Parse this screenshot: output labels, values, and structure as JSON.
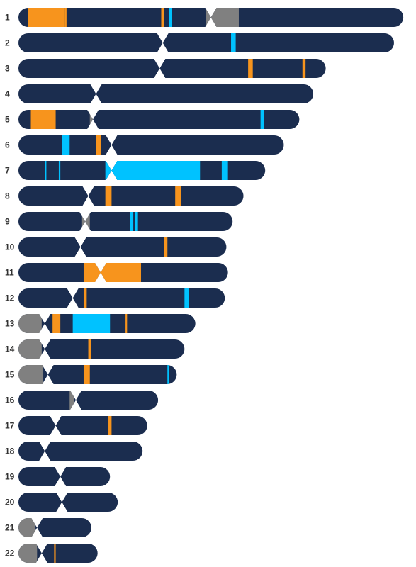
{
  "colors": {
    "chromosome": "#1b2d4f",
    "heterochromatin": "#808080",
    "gain": "#f7941d",
    "loss": "#00c2ff",
    "label": "#333333"
  },
  "chromosomes": [
    {
      "label": "1",
      "length": 248,
      "centromere": 124
    },
    {
      "label": "2",
      "length": 242,
      "centromere": 93
    },
    {
      "label": "3",
      "length": 198,
      "centromere": 91
    },
    {
      "label": "4",
      "length": 190,
      "centromere": 50
    },
    {
      "label": "5",
      "length": 181,
      "centromere": 48
    },
    {
      "label": "6",
      "length": 171,
      "centromere": 60
    },
    {
      "label": "7",
      "length": 159,
      "centromere": 60
    },
    {
      "label": "8",
      "length": 145,
      "centromere": 45
    },
    {
      "label": "9",
      "length": 138,
      "centromere": 43
    },
    {
      "label": "10",
      "length": 134,
      "centromere": 40
    },
    {
      "label": "11",
      "length": 135,
      "centromere": 53
    },
    {
      "label": "12",
      "length": 133,
      "centromere": 35
    },
    {
      "label": "13",
      "length": 114,
      "centromere": 17
    },
    {
      "label": "14",
      "length": 107,
      "centromere": 17
    },
    {
      "label": "15",
      "length": 102,
      "centromere": 19
    },
    {
      "label": "16",
      "length": 90,
      "centromere": 37
    },
    {
      "label": "17",
      "length": 83,
      "centromere": 24
    },
    {
      "label": "18",
      "length": 80,
      "centromere": 17
    },
    {
      "label": "19",
      "length": 59,
      "centromere": 27
    },
    {
      "label": "20",
      "length": 64,
      "centromere": 28
    },
    {
      "label": "21",
      "length": 47,
      "centromere": 12
    },
    {
      "label": "22",
      "length": 51,
      "centromere": 15
    }
  ],
  "heterochromatin": [
    {
      "chr": "1",
      "start": 121,
      "end": 142
    },
    {
      "chr": "5",
      "start": 46,
      "end": 48
    },
    {
      "chr": "9",
      "start": 41,
      "end": 46
    },
    {
      "chr": "13",
      "start": 0,
      "end": 15
    },
    {
      "chr": "14",
      "start": 0,
      "end": 15
    },
    {
      "chr": "15",
      "start": 0,
      "end": 16
    },
    {
      "chr": "16",
      "start": 33,
      "end": 36
    },
    {
      "chr": "21",
      "start": 0,
      "end": 11
    },
    {
      "chr": "22",
      "start": 0,
      "end": 12
    }
  ],
  "gains": [
    {
      "chr": "1",
      "start": 6,
      "end": 30
    },
    {
      "chr": "1",
      "start": 30,
      "end": 31
    },
    {
      "chr": "1",
      "start": 92,
      "end": 94
    },
    {
      "chr": "3",
      "start": 148,
      "end": 151
    },
    {
      "chr": "3",
      "start": 183,
      "end": 185
    },
    {
      "chr": "5",
      "start": 8,
      "end": 24
    },
    {
      "chr": "6",
      "start": 50,
      "end": 53
    },
    {
      "chr": "8",
      "start": 56,
      "end": 60
    },
    {
      "chr": "8",
      "start": 101,
      "end": 105
    },
    {
      "chr": "10",
      "start": 94,
      "end": 96
    },
    {
      "chr": "11",
      "start": 42,
      "end": 79
    },
    {
      "chr": "12",
      "start": 42,
      "end": 44
    },
    {
      "chr": "13",
      "start": 22,
      "end": 27
    },
    {
      "chr": "13",
      "start": 69,
      "end": 70
    },
    {
      "chr": "14",
      "start": 45,
      "end": 47
    },
    {
      "chr": "15",
      "start": 42,
      "end": 46
    },
    {
      "chr": "17",
      "start": 58,
      "end": 60
    },
    {
      "chr": "22",
      "start": 23,
      "end": 24
    }
  ],
  "losses": [
    {
      "chr": "1",
      "start": 97,
      "end": 99
    },
    {
      "chr": "2",
      "start": 137,
      "end": 140
    },
    {
      "chr": "5",
      "start": 156,
      "end": 158
    },
    {
      "chr": "6",
      "start": 28,
      "end": 33
    },
    {
      "chr": "7",
      "start": 17,
      "end": 18
    },
    {
      "chr": "7",
      "start": 26,
      "end": 27
    },
    {
      "chr": "7",
      "start": 56,
      "end": 117
    },
    {
      "chr": "7",
      "start": 131,
      "end": 135
    },
    {
      "chr": "9",
      "start": 72,
      "end": 74
    },
    {
      "chr": "9",
      "start": 75,
      "end": 77
    },
    {
      "chr": "12",
      "start": 107,
      "end": 110
    },
    {
      "chr": "13",
      "start": 35,
      "end": 59
    },
    {
      "chr": "15",
      "start": 96,
      "end": 97
    }
  ]
}
